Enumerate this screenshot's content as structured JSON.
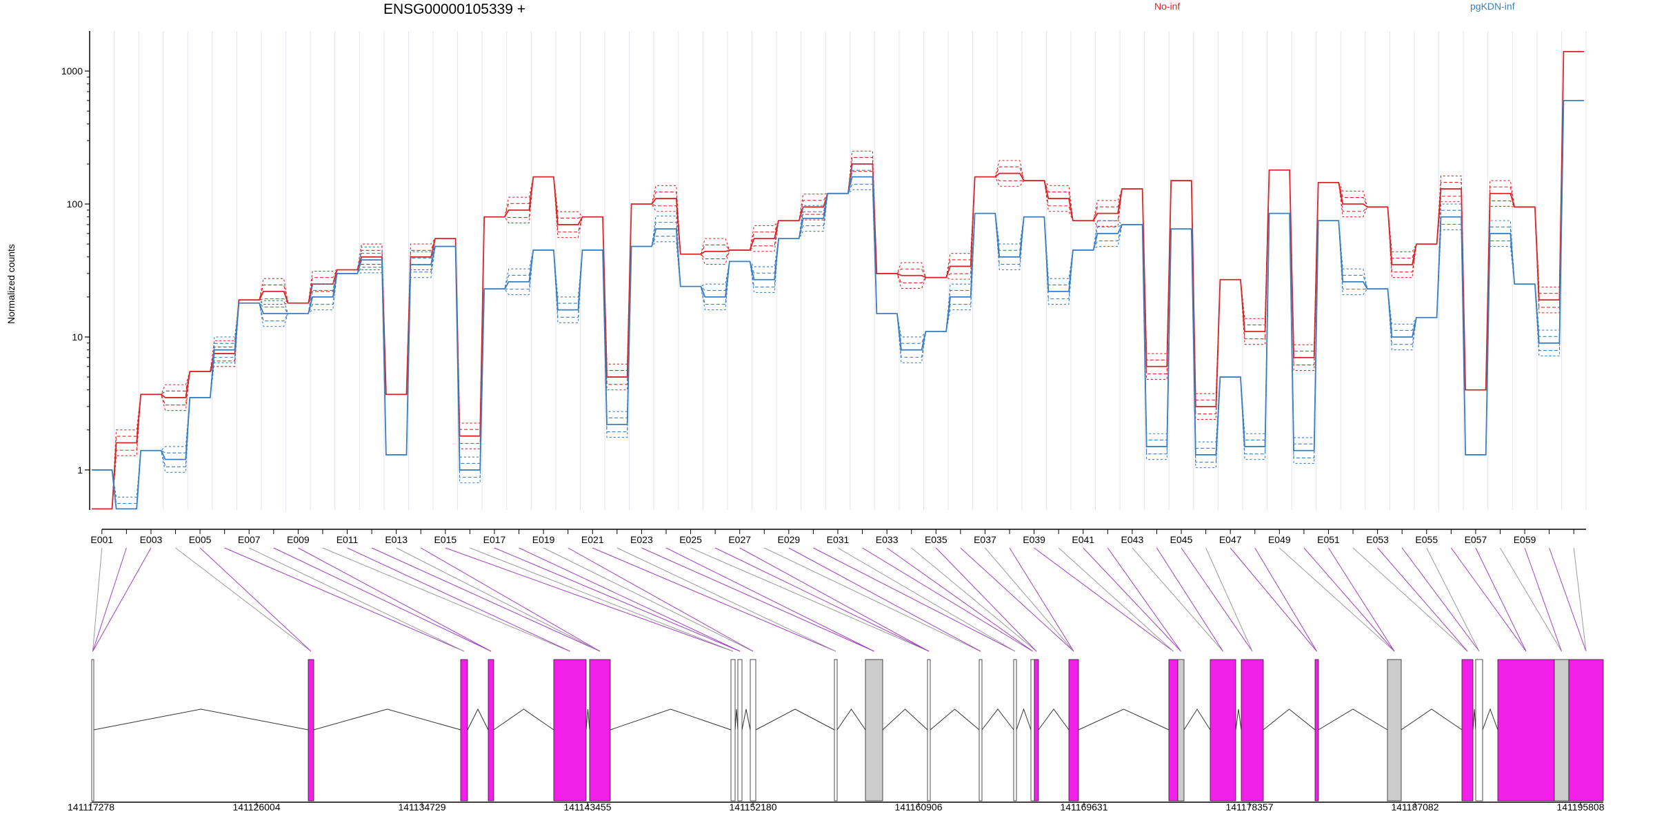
{
  "chart_data": {
    "type": "line",
    "title": "ENSG00000105339 +",
    "ylabel": "Normalized counts",
    "yscale": "log",
    "ylim": [
      0.5,
      2000
    ],
    "yticks": [
      "1",
      "10",
      "100",
      "1000"
    ],
    "legend": [
      {
        "name": "No-inf",
        "color": "#d62728"
      },
      {
        "name": "pgKDN-inf",
        "color": "#3a7fc1"
      }
    ],
    "exon_labels": [
      "E001",
      "E003",
      "E005",
      "E007",
      "E009",
      "E011",
      "E013",
      "E015",
      "E017",
      "E019",
      "E021",
      "E023",
      "E025",
      "E027",
      "E029",
      "E031",
      "E033",
      "E035",
      "E037",
      "E039",
      "E041",
      "E043",
      "E045",
      "E047",
      "E049",
      "E051",
      "E053",
      "E055",
      "E057",
      "E059"
    ],
    "series_mean": [
      {
        "name": "No-inf",
        "values": [
          0.5,
          1.6,
          3.7,
          3.5,
          5.5,
          7.5,
          19,
          22,
          18,
          25,
          32,
          40,
          3.7,
          40,
          55,
          1.8,
          80,
          90,
          160,
          70,
          80,
          5,
          100,
          110,
          42,
          44,
          45,
          55,
          75,
          95,
          120,
          200,
          30,
          29,
          28,
          34,
          160,
          170,
          150,
          110,
          75,
          85,
          130,
          6,
          150,
          3,
          27,
          11,
          180,
          7,
          145,
          100,
          95,
          35,
          50,
          130,
          4,
          120,
          95,
          19,
          1400
        ]
      },
      {
        "name": "pgKDN-inf",
        "values": [
          1,
          0.5,
          1.4,
          1.2,
          3.5,
          8,
          18,
          15,
          15,
          20,
          30,
          38,
          1.3,
          35,
          48,
          1,
          23,
          26,
          45,
          16,
          45,
          2.2,
          48,
          65,
          24,
          20,
          37,
          27,
          55,
          78,
          120,
          160,
          15,
          8,
          11,
          20,
          85,
          40,
          80,
          22,
          45,
          60,
          70,
          1.5,
          65,
          1.3,
          5,
          1.5,
          85,
          1.4,
          75,
          26,
          23,
          10,
          14,
          80,
          1.3,
          60,
          25,
          9,
          600
        ]
      }
    ],
    "genomic_axis_labels": [
      "141117278",
      "141126004",
      "141134729",
      "141143455",
      "141152180",
      "141160906",
      "141169631",
      "141178357",
      "141187082",
      "141195808"
    ],
    "colors": {
      "no_inf": "#d62728",
      "pgkdn_inf": "#3a7fc1",
      "exon_used": "#f020e8",
      "exon_other": "#cccccc"
    }
  }
}
